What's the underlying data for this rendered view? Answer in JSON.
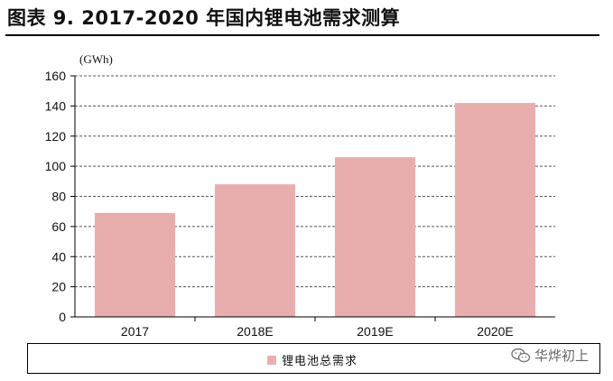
{
  "page": {
    "title": "图表 9. 2017-2020 年国内锂电池需求测算"
  },
  "watermark": {
    "text": "华烨初上",
    "icon": "wechat-icon"
  },
  "colors": {
    "bar": "#e8aeae",
    "grid": "#555555",
    "text": "#111111"
  },
  "chart_data": {
    "type": "bar",
    "unit_label": "(GWh)",
    "categories": [
      "2017",
      "2018E",
      "2019E",
      "2020E"
    ],
    "series": [
      {
        "name": "锂电池总需求",
        "values": [
          69,
          88,
          106,
          142
        ]
      }
    ],
    "ylim": [
      0,
      160
    ],
    "yticks": [
      "0",
      "20",
      "40",
      "60",
      "80",
      "100",
      "120",
      "140",
      "160"
    ],
    "grid": true,
    "grid_style": "dashed",
    "legend_position": "bottom"
  }
}
